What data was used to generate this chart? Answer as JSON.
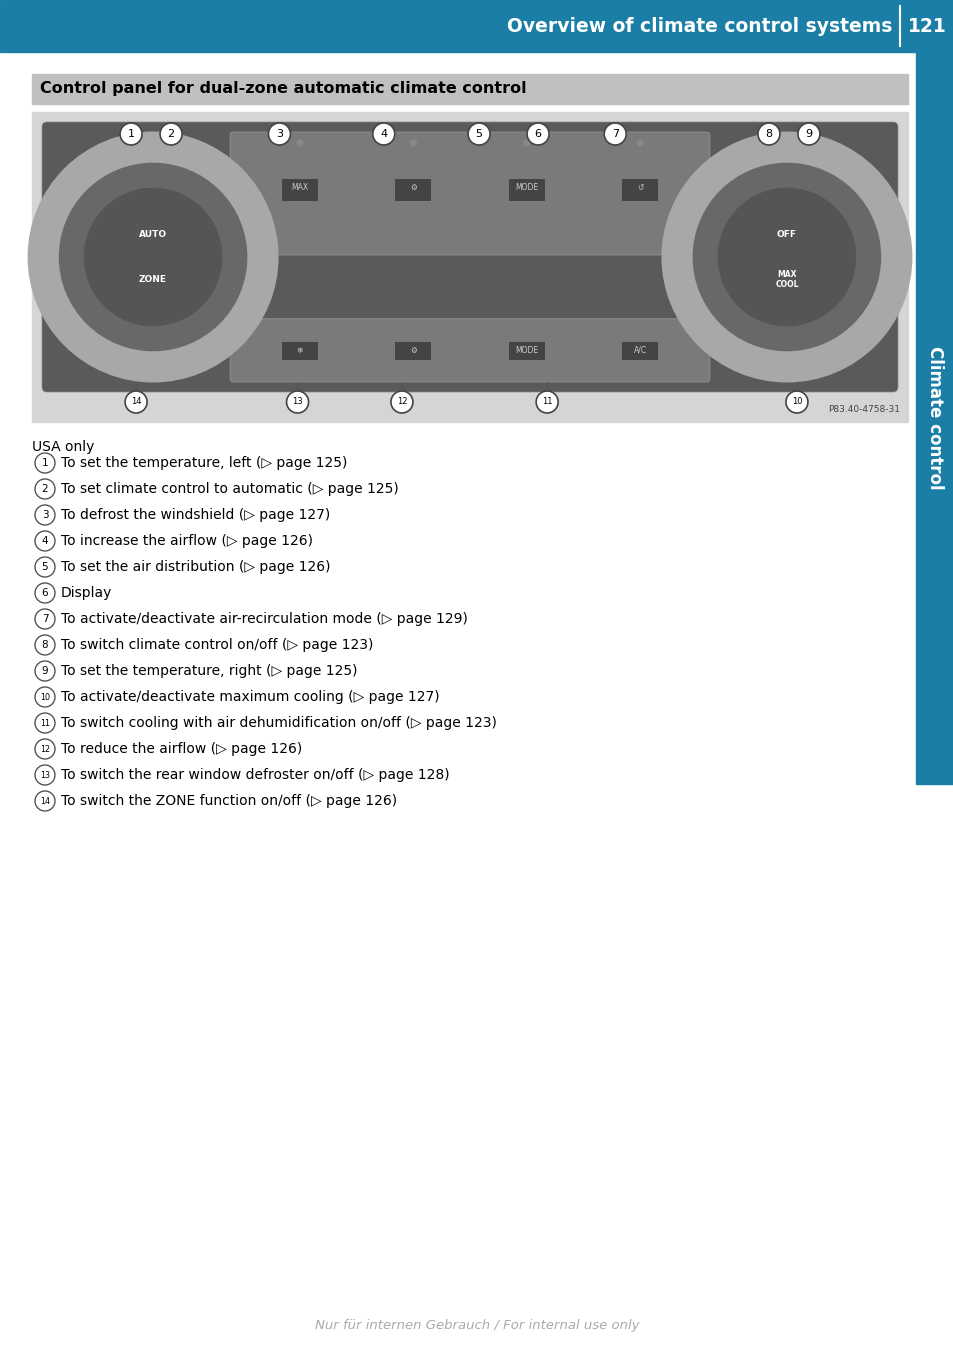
{
  "header_bg_color": "#1b7ea6",
  "header_text": "Overview of climate control systems",
  "header_page": "121",
  "sidebar_color": "#1b7ea6",
  "sidebar_text": "Climate control",
  "section_title": "Control panel for dual-zone automatic climate control",
  "section_title_bg": "#c0c0c0",
  "usa_only": "USA only",
  "items": [
    {
      "num": "1",
      "text": "To set the temperature, left (▷ page 125)"
    },
    {
      "num": "2",
      "text": "To set climate control to automatic (▷ page 125)"
    },
    {
      "num": "3",
      "text": "To defrost the windshield (▷ page 127)"
    },
    {
      "num": "4",
      "text": "To increase the airflow (▷ page 126)"
    },
    {
      "num": "5",
      "text": "To set the air distribution (▷ page 126)"
    },
    {
      "num": "6",
      "text": "Display"
    },
    {
      "num": "7",
      "text": "To activate∕deactivate air-recirculation mode (▷ page 129)"
    },
    {
      "num": "8",
      "text": "To switch climate control on∕off (▷ page 123)"
    },
    {
      "num": "9",
      "text": "To set the temperature, right (▷ page 125)"
    },
    {
      "num": "10",
      "text": "To activate∕deactivate maximum cooling (▷ page 127)"
    },
    {
      "num": "11",
      "text": "To switch cooling with air dehumidification on∕off (▷ page 123)"
    },
    {
      "num": "12",
      "text": "To reduce the airflow (▷ page 126)"
    },
    {
      "num": "13",
      "text": "To switch the rear window defroster on∕off (▷ page 128)"
    },
    {
      "num": "14",
      "text": "To switch the ZONE function on∕off (▷ page 126)"
    }
  ],
  "footer_text": "Nur für internen Gebrauch / For internal use only",
  "footer_color": "#aaaaaa"
}
